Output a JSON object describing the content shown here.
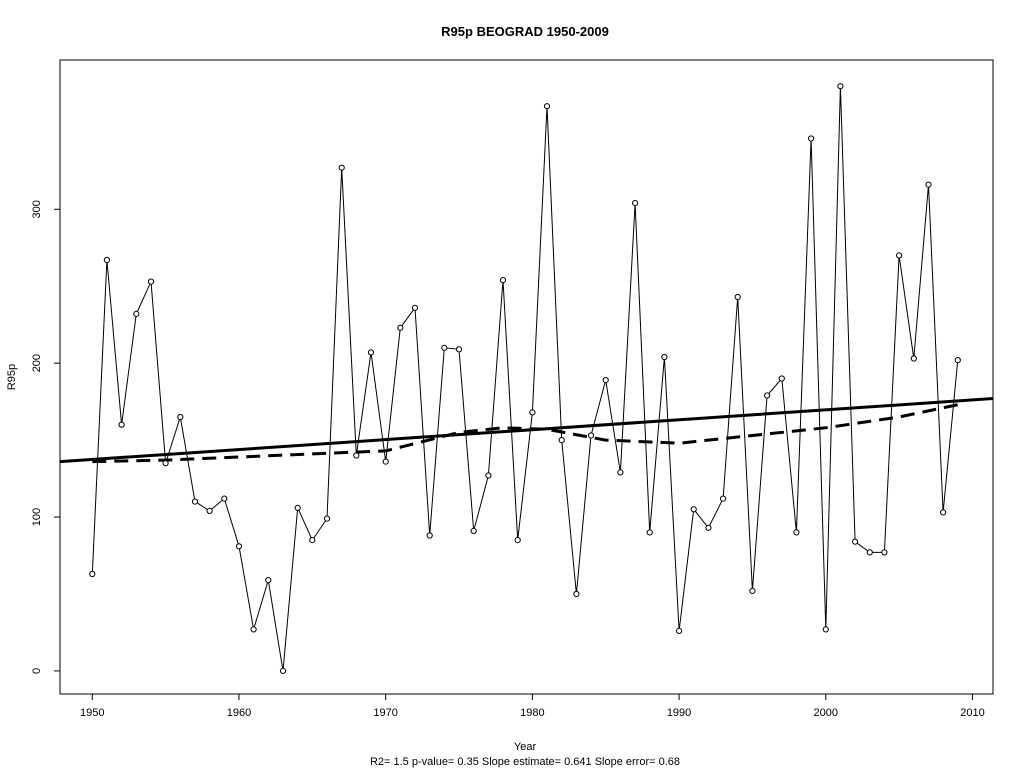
{
  "chart_data": {
    "type": "line",
    "title": "R95p   BEOGRAD 1950-2009",
    "xlabel": "Year",
    "ylabel": "R95p",
    "subtitle": "R2= 1.5  p-value= 0.35  Slope estimate= 0.641  Slope error= 0.68",
    "xlim": [
      1947.8,
      2011.4
    ],
    "ylim": [
      -15,
      397
    ],
    "x_ticks": [
      1950,
      1960,
      1970,
      1980,
      1990,
      2000,
      2010
    ],
    "y_ticks": [
      0,
      100,
      200,
      300
    ],
    "grid": false,
    "series": [
      {
        "kind": "observed",
        "x": [
          1950,
          1951,
          1952,
          1953,
          1954,
          1955,
          1956,
          1957,
          1958,
          1959,
          1960,
          1961,
          1962,
          1963,
          1964,
          1965,
          1966,
          1967,
          1968,
          1969,
          1970,
          1971,
          1972,
          1973,
          1974,
          1975,
          1976,
          1977,
          1978,
          1979,
          1980,
          1981,
          1982,
          1983,
          1984,
          1985,
          1986,
          1987,
          1988,
          1989,
          1990,
          1991,
          1992,
          1993,
          1994,
          1995,
          1996,
          1997,
          1998,
          1999,
          2000,
          2001,
          2002,
          2003,
          2004,
          2005,
          2006,
          2007,
          2008,
          2009
        ],
        "y": [
          63,
          267,
          160,
          232,
          253,
          135,
          165,
          110,
          104,
          112,
          81,
          27,
          59,
          0,
          106,
          85,
          99,
          327,
          140,
          207,
          136,
          223,
          236,
          88,
          210,
          209,
          91,
          127,
          254,
          85,
          168,
          367,
          150,
          50,
          153,
          189,
          129,
          304,
          90,
          204,
          26,
          105,
          93,
          112,
          243,
          52,
          179,
          190,
          90,
          346,
          27,
          380,
          84,
          77,
          77,
          270,
          203,
          316,
          103,
          202
        ]
      },
      {
        "kind": "linear-trend",
        "x": [
          1947.8,
          2011.4
        ],
        "y": [
          136,
          177
        ]
      },
      {
        "kind": "smoothed-trend",
        "x": [
          1950,
          1955,
          1960,
          1965,
          1970,
          1975,
          1978,
          1981,
          1985,
          1990,
          1995,
          2000,
          2005,
          2009
        ],
        "y": [
          136,
          137,
          139,
          141,
          143,
          155,
          158,
          157,
          150,
          148,
          153,
          158,
          165,
          173
        ]
      }
    ]
  }
}
